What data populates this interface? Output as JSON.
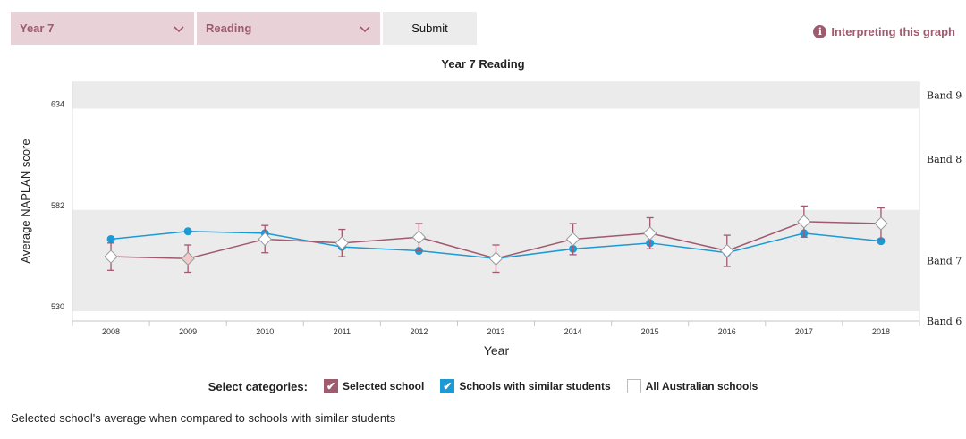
{
  "controls": {
    "year_select": "Year 7",
    "domain_select": "Reading",
    "submit_label": "Submit",
    "interpreting_label": "Interpreting this graph",
    "info_glyph": "i"
  },
  "legend": {
    "lead": "Select categories:",
    "items": [
      {
        "label": "Selected school",
        "checked": true,
        "color": "#a05a6e"
      },
      {
        "label": "Schools with similar students",
        "checked": true,
        "color": "#1b9ad6"
      },
      {
        "label": "All Australian schools",
        "checked": false,
        "color": "#ffffff"
      }
    ]
  },
  "footer": "Selected school's average when compared to schools with similar students",
  "chart_data": {
    "type": "line",
    "title": "Year 7 Reading",
    "xlabel": "Year",
    "ylabel": "Average NAPLAN score",
    "x": [
      "2008",
      "2009",
      "2010",
      "2011",
      "2012",
      "2013",
      "2014",
      "2015",
      "2016",
      "2017",
      "2018"
    ],
    "yticks": [
      530,
      582,
      634
    ],
    "ylim": [
      525,
      647.5
    ],
    "bands": [
      {
        "label": "Band 9",
        "from": 634,
        "to": 647.5,
        "shaded": true
      },
      {
        "label": "Band 8",
        "from": 582,
        "to": 634,
        "shaded": false
      },
      {
        "label": "Band 7",
        "from": 530,
        "to": 582,
        "shaded": true
      },
      {
        "label": "Band 6",
        "from": 525,
        "to": 530,
        "shaded": false
      }
    ],
    "series": [
      {
        "name": "Selected school",
        "color": "#a05a6e",
        "values": [
          558,
          557,
          567,
          565,
          568,
          557,
          567,
          570,
          561,
          576,
          575
        ],
        "err": [
          7,
          7,
          7,
          7,
          7,
          7,
          8,
          8,
          8,
          8,
          8
        ]
      },
      {
        "name": "Schools with similar students",
        "color": "#1b9ad6",
        "values": [
          567,
          571,
          570,
          563,
          561,
          557,
          562,
          565,
          560,
          570,
          566
        ]
      }
    ],
    "grid": false
  }
}
